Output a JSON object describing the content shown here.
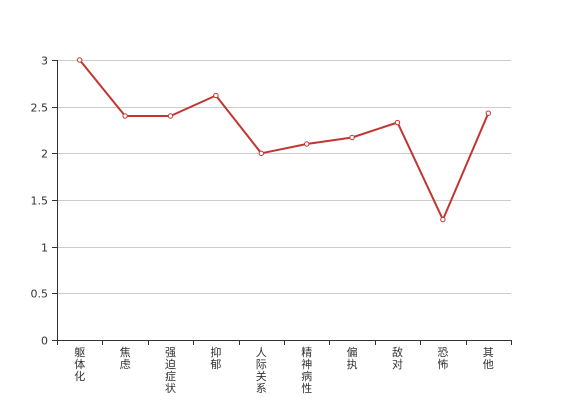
{
  "chart_data": {
    "type": "line",
    "categories": [
      "躯体化",
      "焦虑",
      "强迫症状",
      "抑郁",
      "人际关系敏感",
      "精神病性",
      "偏执",
      "敌对",
      "恐怖",
      "其他"
    ],
    "series": [
      {
        "values": [
          3.0,
          2.4,
          2.4,
          2.62,
          2.0,
          2.1,
          2.17,
          2.33,
          1.29,
          2.43
        ]
      }
    ],
    "ylim": [
      0,
      3
    ],
    "yticks": [
      0,
      0.5,
      1,
      1.5,
      2,
      2.5,
      3
    ],
    "ytick_labels": [
      "0",
      "0.5",
      "1",
      "1.5",
      "2",
      "2.5",
      "3"
    ],
    "grid": true,
    "line_color": "#c23531",
    "grid_color": "#cccccc",
    "axis_color": "#333333"
  }
}
